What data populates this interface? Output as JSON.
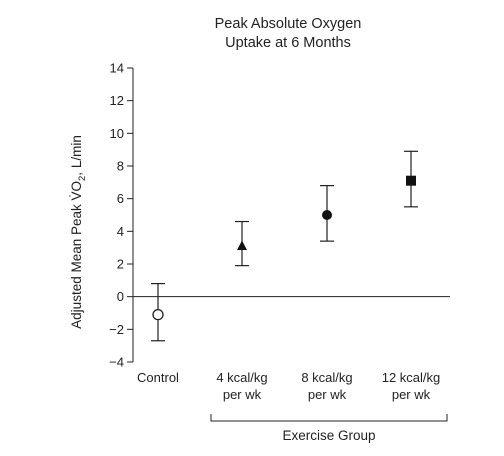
{
  "chart_data": {
    "type": "scatter",
    "title_lines": [
      "Peak Absolute Oxygen",
      "Uptake at 6 Months"
    ],
    "ylabel_parts": {
      "pre": "Adjusted Mean Peak V̇O",
      "sub": "2",
      "post": ", L/min"
    },
    "ylim": [
      -4,
      14
    ],
    "yticks": [
      -4,
      -2,
      0,
      2,
      4,
      6,
      8,
      10,
      12,
      14
    ],
    "ytick_labels": [
      "−4",
      "−2",
      "0",
      "2",
      "4",
      "6",
      "8",
      "10",
      "12",
      "14"
    ],
    "reference_line_y": 0,
    "categories": [
      {
        "lines": [
          "Control"
        ],
        "value": -1.1,
        "ci_low": -2.7,
        "ci_high": 0.8,
        "marker": "open-circle"
      },
      {
        "lines": [
          "4 kcal/kg",
          "per wk"
        ],
        "value": 3.1,
        "ci_low": 1.9,
        "ci_high": 4.6,
        "marker": "filled-triangle"
      },
      {
        "lines": [
          "8 kcal/kg",
          "per wk"
        ],
        "value": 5.0,
        "ci_low": 3.4,
        "ci_high": 6.8,
        "marker": "filled-circle"
      },
      {
        "lines": [
          "12 kcal/kg",
          "per wk"
        ],
        "value": 7.1,
        "ci_low": 5.5,
        "ci_high": 8.9,
        "marker": "filled-square"
      }
    ],
    "group_label": "Exercise Group",
    "grid": false
  }
}
